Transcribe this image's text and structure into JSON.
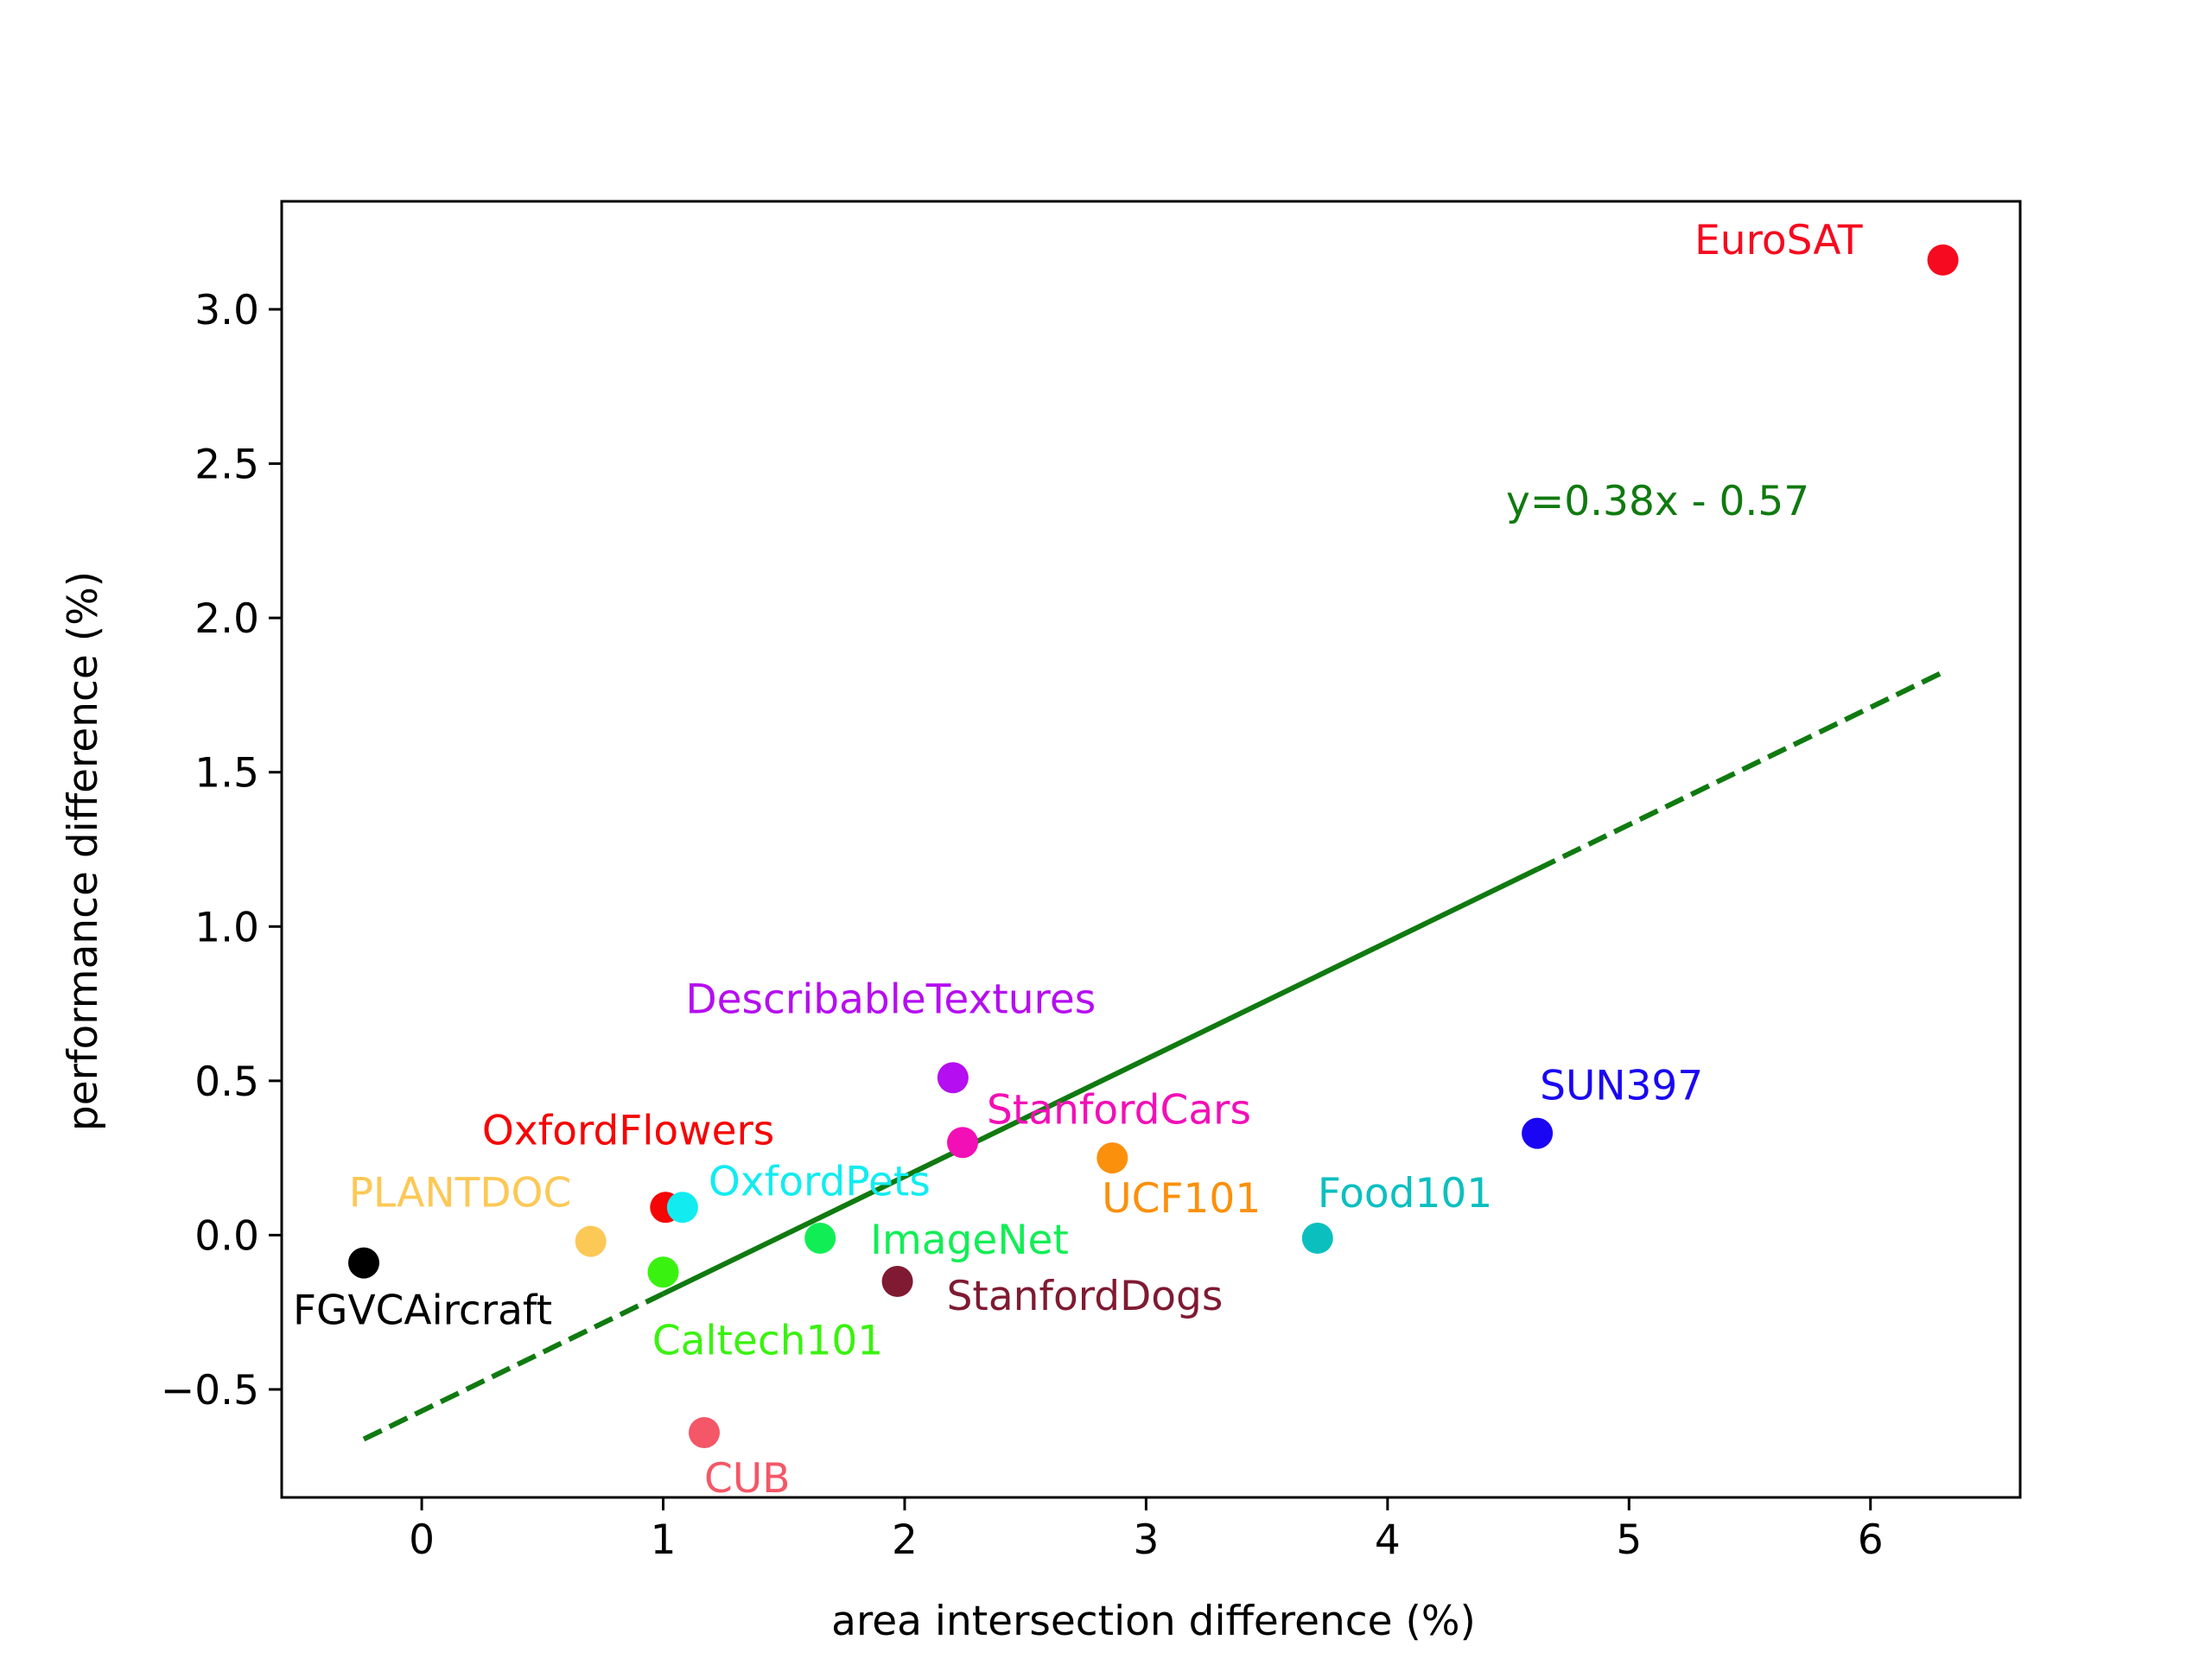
{
  "chart_data": {
    "type": "scatter",
    "title": "",
    "xlabel": "area intersection difference (%)",
    "ylabel": "performance difference (%)",
    "xlim": [
      -0.58,
      6.62
    ],
    "ylim": [
      -0.85,
      3.35
    ],
    "xticks": [
      0,
      1,
      2,
      3,
      4,
      5,
      6
    ],
    "xtick_labels": [
      "0",
      "1",
      "2",
      "3",
      "4",
      "5",
      "6"
    ],
    "yticks": [
      -0.5,
      0.0,
      0.5,
      1.0,
      1.5,
      2.0,
      2.5,
      3.0
    ],
    "ytick_labels": [
      "−0.5",
      "0.0",
      "0.5",
      "1.0",
      "1.5",
      "2.0",
      "2.5",
      "3.0"
    ],
    "grid": false,
    "points": [
      {
        "label": "EuroSAT",
        "x": 6.3,
        "y": 3.16,
        "color": "#f50a1f"
      },
      {
        "label": "SUN397",
        "x": 4.62,
        "y": 0.33,
        "color": "#1a06f2"
      },
      {
        "label": "DescribableTextures",
        "x": 2.2,
        "y": 0.51,
        "color": "#b50ef0"
      },
      {
        "label": "StanfordCars",
        "x": 2.24,
        "y": 0.3,
        "color": "#f20fb6"
      },
      {
        "label": "UCF101",
        "x": 2.86,
        "y": 0.25,
        "color": "#fb900c"
      },
      {
        "label": "Food101",
        "x": 3.71,
        "y": -0.01,
        "color": "#0cbfbf"
      },
      {
        "label": "OxfordFlowers",
        "x": 1.01,
        "y": 0.09,
        "color": "#f50505"
      },
      {
        "label": "OxfordPets",
        "x": 1.08,
        "y": 0.09,
        "color": "#12ecf0"
      },
      {
        "label": "PLANTDOC",
        "x": 0.7,
        "y": -0.02,
        "color": "#fcc856"
      },
      {
        "label": "ImageNet",
        "x": 1.65,
        "y": -0.01,
        "color": "#11ee55"
      },
      {
        "label": "StanfordDogs",
        "x": 1.97,
        "y": -0.15,
        "color": "#7f1a32"
      },
      {
        "label": "Caltech101",
        "x": 1.0,
        "y": -0.12,
        "color": "#3af20f"
      },
      {
        "label": "FGVCAircraft",
        "x": -0.24,
        "y": -0.09,
        "color": "#000000"
      },
      {
        "label": "CUB",
        "x": 1.17,
        "y": -0.64,
        "color": "#f45767"
      }
    ],
    "trendline": {
      "label": "y=0.38x - 0.57",
      "slope": 0.38,
      "intercept": -0.57,
      "x_start": -0.24,
      "x_end": 6.3,
      "solid_from": 1.0,
      "solid_to": 4.62,
      "color": "#107a10"
    }
  }
}
